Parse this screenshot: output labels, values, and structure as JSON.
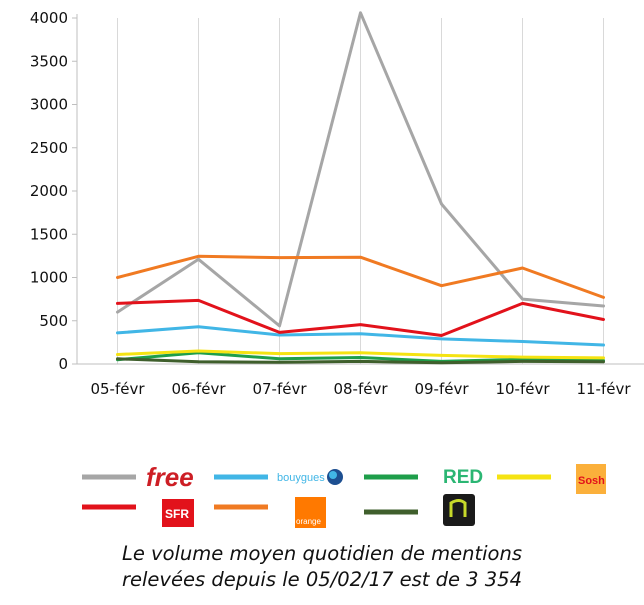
{
  "chart_data": {
    "type": "line",
    "categories": [
      "05-févr",
      "06-févr",
      "07-févr",
      "08-févr",
      "09-févr",
      "10-févr",
      "11-févr"
    ],
    "ylim": [
      0,
      4000
    ],
    "yticks": [
      0,
      500,
      1000,
      1500,
      2000,
      2500,
      3000,
      3500,
      4000
    ],
    "grid": "vertical",
    "legend_position": "bottom",
    "series": [
      {
        "name": "free",
        "color": "#a6a6a6",
        "values": [
          600,
          1210,
          440,
          4060,
          1850,
          750,
          670
        ]
      },
      {
        "name": "bouygues",
        "color": "#41b6e6",
        "values": [
          360,
          430,
          335,
          350,
          290,
          260,
          220
        ]
      },
      {
        "name": "RED",
        "color": "#1e9e4a",
        "values": [
          50,
          130,
          60,
          75,
          30,
          55,
          40
        ]
      },
      {
        "name": "Sosh",
        "color": "#f5e312",
        "values": [
          110,
          150,
          120,
          130,
          100,
          80,
          70
        ]
      },
      {
        "name": "SFR",
        "color": "#e2121b",
        "values": [
          700,
          735,
          365,
          455,
          330,
          700,
          515
        ]
      },
      {
        "name": "orange",
        "color": "#f07a22",
        "values": [
          1000,
          1245,
          1230,
          1235,
          905,
          1110,
          770
        ]
      },
      {
        "name": "NRJ mobile",
        "color": "#3f5f2c",
        "values": [
          60,
          25,
          20,
          30,
          15,
          30,
          25
        ]
      }
    ]
  },
  "legend": {
    "free": "free",
    "bouygues": "bouygues",
    "red": "RED",
    "sosh": "Sosh",
    "sfr": "SFR",
    "orange": "orange"
  },
  "caption": {
    "line1": "Le volume moyen quotidien de mentions",
    "line2": "relevées depuis le 05/02/17 est de 3 354"
  }
}
